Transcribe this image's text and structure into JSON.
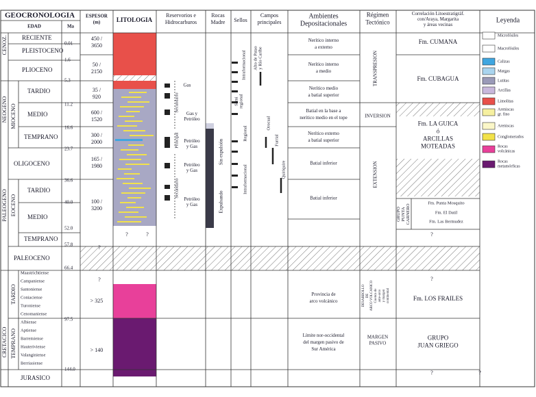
{
  "header": {
    "geocronologia": "GEOCRONOLOGIA",
    "edad": "EDAD",
    "ma": "Ma",
    "espesor": [
      "ESPESOR",
      "(m)"
    ],
    "litologia": "LITOLOGIA",
    "reservorios": [
      "Reservorios e",
      "Hidrocarburos"
    ],
    "rocas_madre": [
      "Rocas",
      "Madre"
    ],
    "sellos": "Sellos",
    "campos": [
      "Campos",
      "principales"
    ],
    "ambientes": [
      "Ambientes",
      "Depositacionales"
    ],
    "regimen": [
      "Régimen",
      "Tectónico"
    ],
    "correlacion": [
      "Correlación Litoestratigráf.",
      "con/Araya, Margarita",
      "y áreas vecinas"
    ],
    "leyenda": "Leyenda"
  },
  "eras": [
    "CENOZ.",
    "NEOGENO",
    "PALEOGENO",
    "CRETACICO"
  ],
  "epochs_vertical": [
    "MIOCENO",
    "EOCENO",
    "TARDIO",
    "TEMPRANO"
  ],
  "ages": [
    "RECIENTE",
    "PLEISTOCENO",
    "PLIOCENO",
    "TARDIO",
    "MEDIO",
    "TEMPRANO",
    "OLIGOCENO",
    "TARDIO",
    "MEDIO",
    "TEMPRANO",
    "PALEOCENO",
    "JURASICO"
  ],
  "cretaceous_stages": [
    "Maastrichtiense",
    "Campaniense",
    "Santoniense",
    "Coniaciense",
    "Turoniense",
    "Cenomaniense",
    "Albiense",
    "Aptiense",
    "Barremiense",
    "Hauteriviense",
    "Valanginiense",
    "Berriasiense"
  ],
  "ma_values": [
    "0.01",
    "1.6",
    "5.3",
    "11.2",
    "16.6",
    "23.7",
    "36.6",
    "40.0",
    "52.0",
    "57.8",
    "66.4",
    "97.5",
    "144.0"
  ],
  "espesor": [
    [
      "450 /",
      "3650"
    ],
    [
      "50 /",
      "2150"
    ],
    [
      "35 /",
      "920"
    ],
    [
      "600 /",
      "1520"
    ],
    [
      "300 /",
      "2000"
    ],
    [
      "165 /",
      "1980"
    ],
    [
      "100 /",
      "3200"
    ],
    "> 325",
    "> 140"
  ],
  "reservorios": {
    "hydrocarbons": [
      "Gas",
      [
        "Gas y",
        "Petróleo"
      ],
      [
        "Petróleo",
        "y Gas"
      ],
      [
        "Petróleo",
        "y Gas"
      ],
      [
        "Petróleo",
        "y Gas"
      ]
    ],
    "levels": [
      "Secundario",
      "Principal",
      "Secundario"
    ]
  },
  "rocas_madre": [
    "Expulsando",
    "Sin expulsión"
  ],
  "sellos": [
    "Intraformacional",
    [
      "Semi",
      "regional"
    ],
    "Regional",
    "Intraformacional"
  ],
  "campos": [
    [
      "Alto de Patao",
      "y Río Caribe"
    ],
    "Orocual",
    "Furrial",
    "Quiriquire"
  ],
  "ambientes": [
    [
      "Nerítico interno",
      "a externo"
    ],
    [
      "Nerítico interno",
      "a medio"
    ],
    [
      "Nerítico medio",
      "a batial superior"
    ],
    [
      "Batial en la base a",
      "nerítico medio en el tope"
    ],
    [
      "Nerítico externo",
      "a batial superior"
    ],
    "Batial inferior",
    "Batial inferior",
    [
      "Provincia de",
      "arco volcánico"
    ],
    [
      "Límite nor-occidental",
      "del margen pasivo de",
      "Sur América"
    ]
  ],
  "regimen": [
    "TRANSPRESION",
    "INVERSION",
    "EXTENSION",
    [
      "DESARROLLO",
      "DE",
      "ARCO VOLCANICO"
    ],
    [
      "Cuenca de",
      "ante-arco",
      "y margen",
      "continental"
    ],
    [
      "MARGEN",
      "PASIVO"
    ]
  ],
  "correlacion": {
    "formations": [
      "Fm. CUMANA",
      "Fm. CUBAGUA",
      [
        "Fm. LA GUICA",
        "ó",
        "ARCILLAS",
        "MOTEADAS"
      ],
      "Fm. LOS FRAILES",
      [
        "GRUPO",
        "JUAN GRIEGO"
      ]
    ],
    "group": [
      "GRUPO",
      "PUNTA",
      "CARNERO"
    ],
    "group_members": [
      "Fm. Punta Mosquito",
      "Fm. El Datil",
      "Fm. Las Bermudez"
    ]
  },
  "leyenda": [
    {
      "label": "Microfósiles",
      "color": "#ffffff"
    },
    {
      "label": "Macrofósiles",
      "color": "#ffffff"
    },
    {
      "label": "Calizas",
      "color": "#3fa6e0"
    },
    {
      "label": "Margas",
      "color": "#a9d4ee"
    },
    {
      "label": "Lutitas",
      "color": "#9a9ab8"
    },
    {
      "label": "Arcillas",
      "color": "#c8b8dc"
    },
    {
      "label": "Limolitas",
      "color": "#e8504a"
    },
    {
      "label": [
        "Areniscas",
        "gr. fino"
      ],
      "color": "#f6f0a0"
    },
    {
      "label": "Areniscas",
      "color": "#fbf7c8"
    },
    {
      "label": "Conglomerados",
      "color": "#f2e24a"
    },
    {
      "label": [
        "Rocas",
        "volcánicas"
      ],
      "color": "#e8409a"
    },
    {
      "label": [
        "Rocas",
        "metamórficas"
      ],
      "color": "#6a1a70"
    }
  ],
  "unknown": "?"
}
